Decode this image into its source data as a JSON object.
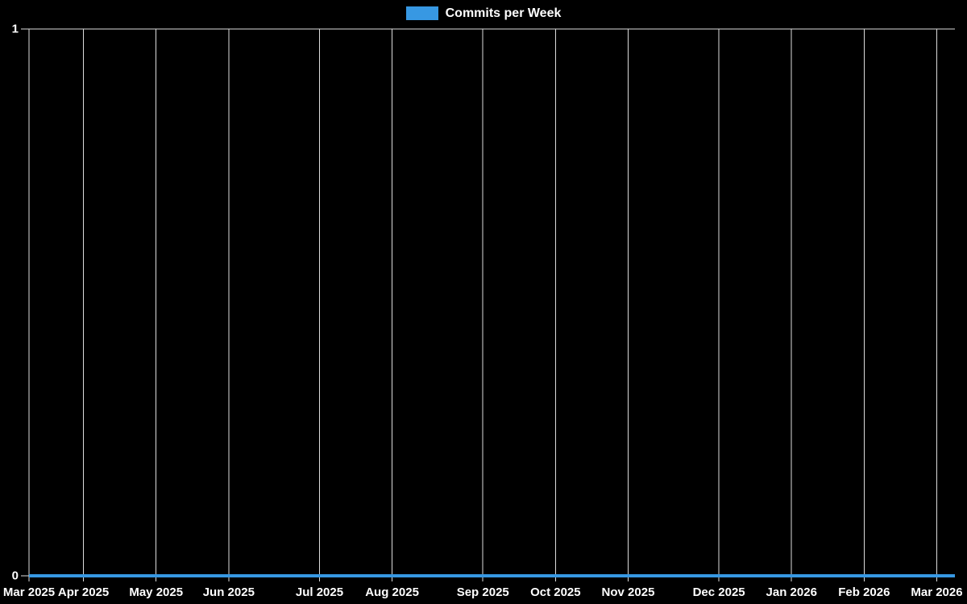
{
  "colors": {
    "background": "#000000",
    "series_blue": "#3798e3",
    "gridline": "#dcdcdc",
    "text": "#ffffff"
  },
  "legend": {
    "label": "Commits per Week",
    "swatch_color": "#3798e3",
    "position": "top-center"
  },
  "chart_data": {
    "type": "line",
    "title": "",
    "xlabel": "",
    "ylabel": "",
    "grid": true,
    "x_axis": {
      "unit": "week",
      "ticks": [
        {
          "label": "Mar 2025",
          "week_index": 0
        },
        {
          "label": "Apr 2025",
          "week_index": 3
        },
        {
          "label": "May 2025",
          "week_index": 7
        },
        {
          "label": "Jun 2025",
          "week_index": 11
        },
        {
          "label": "Jul 2025",
          "week_index": 16
        },
        {
          "label": "Aug 2025",
          "week_index": 20
        },
        {
          "label": "Sep 2025",
          "week_index": 25
        },
        {
          "label": "Oct 2025",
          "week_index": 29
        },
        {
          "label": "Nov 2025",
          "week_index": 33
        },
        {
          "label": "Dec 2025",
          "week_index": 38
        },
        {
          "label": "Jan 2026",
          "week_index": 42
        },
        {
          "label": "Feb 2026",
          "week_index": 46
        },
        {
          "label": "Mar 2026",
          "week_index": 50
        }
      ]
    },
    "y_axis": {
      "min": 0,
      "max": 1,
      "ticks": [
        {
          "label": "1",
          "value": 1
        },
        {
          "label": "0",
          "value": 0
        }
      ]
    },
    "series": [
      {
        "name": "Commits per Week",
        "color": "#3798e3",
        "line_width": 4,
        "values": [
          0,
          0,
          0,
          0,
          0,
          0,
          0,
          0,
          0,
          0,
          0,
          0,
          0,
          0,
          0,
          0,
          0,
          0,
          0,
          0,
          0,
          0,
          0,
          0,
          0,
          0,
          0,
          0,
          0,
          0,
          0,
          0,
          0,
          0,
          0,
          0,
          0,
          0,
          0,
          0,
          0,
          0,
          0,
          0,
          0,
          0,
          0,
          0,
          0,
          0,
          0,
          0
        ]
      }
    ]
  }
}
